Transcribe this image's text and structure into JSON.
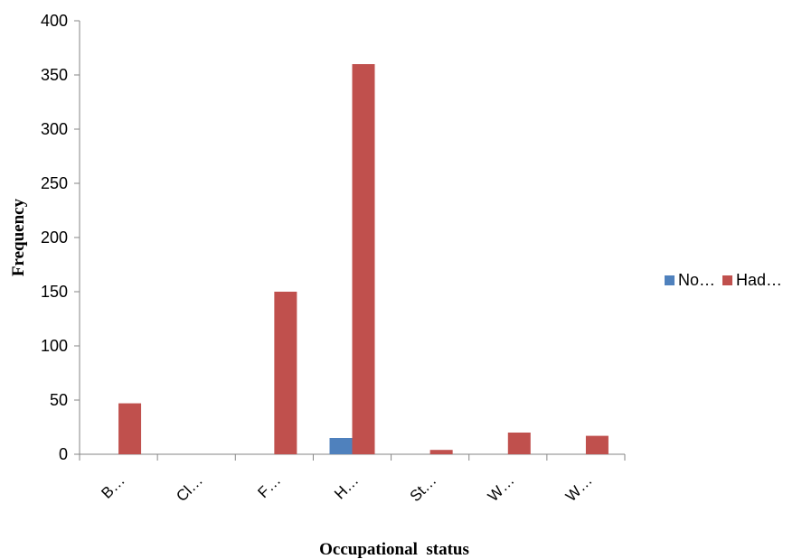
{
  "chart_data": {
    "type": "bar",
    "title": "",
    "xlabel": "Occupational  status",
    "ylabel": "Frequency",
    "ylim": [
      0,
      400
    ],
    "yticks": [
      0,
      50,
      100,
      150,
      200,
      250,
      300,
      350,
      400
    ],
    "categories": [
      "B…",
      "Cl…",
      "F…",
      "H…",
      "St…",
      "W…",
      "W…"
    ],
    "series": [
      {
        "name": "No…",
        "color": "#4f81bd",
        "values": [
          0,
          0,
          0,
          15,
          0,
          0,
          0
        ]
      },
      {
        "name": "Had…",
        "color": "#c0504d",
        "values": [
          47,
          0,
          150,
          360,
          4,
          20,
          17
        ]
      }
    ],
    "grid": false,
    "legend_position": "right"
  }
}
